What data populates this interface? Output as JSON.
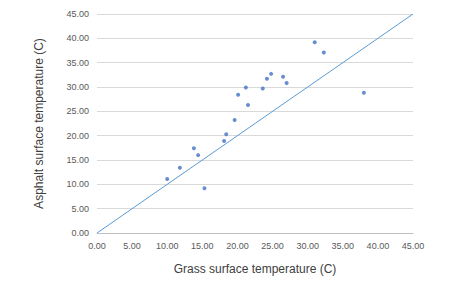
{
  "chart_data": {
    "type": "scatter",
    "xlabel": "Grass surface temperature (C)",
    "ylabel": "Asphalt surface temperature (C)",
    "series": [
      {
        "type": "scatter",
        "color": "#4472c4",
        "x": [
          10.0,
          11.8,
          13.8,
          14.4,
          15.3,
          18.1,
          18.4,
          19.6,
          20.1,
          21.2,
          21.5,
          23.6,
          24.2,
          24.8,
          26.5,
          27.0,
          31.0,
          32.3,
          38.0
        ],
        "values": [
          11.1,
          13.4,
          17.4,
          16.0,
          9.2,
          18.9,
          20.3,
          23.2,
          28.4,
          29.9,
          26.3,
          29.7,
          31.7,
          32.7,
          32.1,
          30.8,
          39.2,
          37.1,
          28.8
        ]
      },
      {
        "type": "line",
        "color": "#5b9bd5",
        "x": [
          0,
          45
        ],
        "values": [
          0,
          45
        ]
      }
    ],
    "xlim": [
      0,
      45
    ],
    "xticks": [
      {
        "value": 0,
        "label": "0.00"
      },
      {
        "value": 5,
        "label": "5.00"
      },
      {
        "value": 10,
        "label": "10.00"
      },
      {
        "value": 15,
        "label": "15.00"
      },
      {
        "value": 20,
        "label": "20.00"
      },
      {
        "value": 25,
        "label": "25.00"
      },
      {
        "value": 30,
        "label": "30.00"
      },
      {
        "value": 35,
        "label": "35.00"
      },
      {
        "value": 40,
        "label": "40.00"
      },
      {
        "value": 45,
        "label": "45.00"
      }
    ],
    "ylim": [
      0,
      45
    ],
    "yticks": [
      {
        "value": 0,
        "label": "0.00"
      },
      {
        "value": 5,
        "label": "5.00"
      },
      {
        "value": 10,
        "label": "10.00"
      },
      {
        "value": 15,
        "label": "15.00"
      },
      {
        "value": 20,
        "label": "20.00"
      },
      {
        "value": 25,
        "label": "25.00"
      },
      {
        "value": 30,
        "label": "30.00"
      },
      {
        "value": 35,
        "label": "35.00"
      },
      {
        "value": 40,
        "label": "40.00"
      },
      {
        "value": 45,
        "label": "45.00"
      }
    ],
    "grid": true
  }
}
